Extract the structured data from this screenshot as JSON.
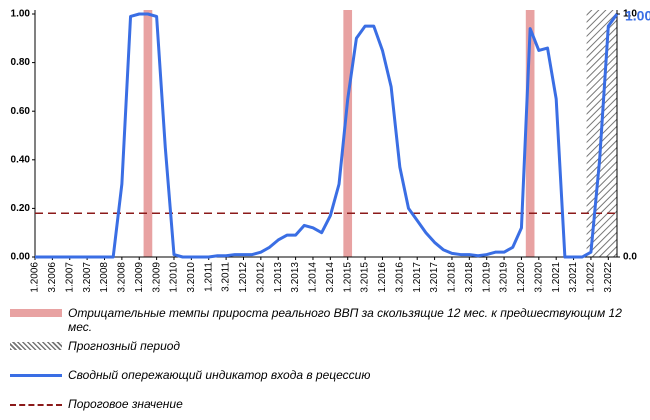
{
  "chart_data": {
    "type": "line",
    "categories": [
      "1.2006",
      null,
      "3.2006",
      null,
      "1.2007",
      null,
      "3.2007",
      null,
      "1.2008",
      null,
      "3.2008",
      null,
      "1.2009",
      null,
      "3.2009",
      null,
      "1.2010",
      null,
      "3.2010",
      null,
      "1.2011",
      null,
      "3.2011",
      null,
      "1.2012",
      null,
      "3.2012",
      null,
      "1.2013",
      null,
      "3.2013",
      null,
      "1.2014",
      null,
      "3.2014",
      null,
      "1.2015",
      null,
      "3.2015",
      null,
      "1.2016",
      null,
      "3.2016",
      null,
      "1.2017",
      null,
      "3.2017",
      null,
      "1.2018",
      null,
      "3.2018",
      null,
      "1.2019",
      null,
      "3.2019",
      null,
      "1.2020",
      null,
      "3.2020",
      null,
      "1.2021",
      null,
      "3.2021",
      null,
      "1.2022",
      null,
      "3.2022",
      null
    ],
    "series": [
      {
        "name": "Сводный опережающий индикатор входа в рецессию",
        "color": "#3a6ee4",
        "values": [
          0,
          0,
          0,
          0,
          0,
          0,
          0,
          0,
          0,
          0,
          0.3,
          0.99,
          1.0,
          1.0,
          0.99,
          0.45,
          0.01,
          0,
          0,
          0,
          0,
          0.005,
          0.005,
          0.01,
          0.01,
          0.01,
          0.02,
          0.04,
          0.07,
          0.09,
          0.09,
          0.13,
          0.12,
          0.1,
          0.17,
          0.3,
          0.65,
          0.9,
          0.95,
          0.95,
          0.85,
          0.7,
          0.37,
          0.2,
          0.15,
          0.1,
          0.06,
          0.03,
          0.015,
          0.01,
          0.01,
          0.005,
          0.01,
          0.02,
          0.02,
          0.04,
          0.12,
          0.94,
          0.85,
          0.86,
          0.65,
          0,
          0,
          0,
          0.02,
          0.4,
          0.95,
          1.0
        ],
        "value_labels": [
          null,
          null,
          null,
          null,
          null,
          null,
          null,
          null,
          null,
          null,
          null,
          null,
          null,
          null,
          null,
          null,
          null,
          null,
          null,
          null,
          null,
          null,
          null,
          null,
          null,
          null,
          null,
          null,
          null,
          null,
          null,
          null,
          null,
          null,
          null,
          null,
          null,
          null,
          null,
          null,
          null,
          null,
          null,
          null,
          null,
          null,
          null,
          null,
          null,
          null,
          null,
          null,
          null,
          null,
          null,
          null,
          null,
          null,
          null,
          null,
          null,
          null,
          null,
          null,
          null,
          null,
          null,
          "1.00"
        ]
      }
    ],
    "shaded": [
      {
        "name": "Отрицательные темпы прироста реального ВВП за скользящие 12 мес. к предшествующим 12 мес.",
        "color": "#e8a2a2",
        "style": "solid",
        "spans": [
          [
            13,
            13
          ],
          [
            36,
            36
          ],
          [
            57,
            57
          ]
        ]
      },
      {
        "name": "Прогнозный период",
        "color": "#777777",
        "style": "hatch",
        "spans": [
          [
            64,
            67
          ]
        ]
      }
    ],
    "threshold": {
      "name": "Пороговое значение",
      "value": 0.18,
      "color": "#8b1a1a"
    },
    "ylim": [
      0,
      1
    ],
    "yticks": [
      {
        "value": 0,
        "label": "0.00"
      },
      {
        "value": 0.2,
        "label": "0.20"
      },
      {
        "value": 0.4,
        "label": "0.40"
      },
      {
        "value": 0.6,
        "label": "0.60"
      },
      {
        "value": 0.8,
        "label": "0.80"
      },
      {
        "value": 1,
        "label": "1.00"
      }
    ],
    "y2lim": [
      0,
      1
    ],
    "y2ticks": [
      {
        "value": 0,
        "label": "0.0"
      },
      {
        "value": 1,
        "label": "1.0"
      }
    ],
    "grid": false
  }
}
